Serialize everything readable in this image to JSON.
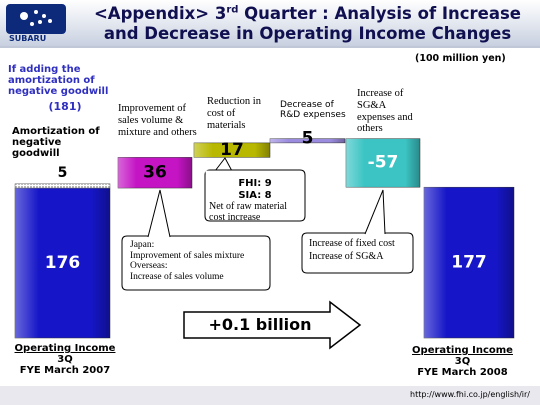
{
  "logo": "SUBARU",
  "header": {
    "title_start": "<Appendix> 3",
    "title_sup": "rd",
    "title_end": " Quarter : Analysis of Increase and Decrease in Operating Income Changes"
  },
  "unit": "(100 million yen)",
  "chart_data": {
    "type": "waterfall",
    "categories": [
      "Operating Income\n3Q\nFYE March 2007",
      "Improvement of sales volume & mixture and others",
      "Reduction in cost of materials",
      "Decrease of R&D expenses",
      "Increase of SG&A expenses and others",
      "Operating Income\n3Q\nFYE March 2008"
    ],
    "values": [
      176,
      36,
      17,
      5,
      -57,
      177
    ],
    "colors": [
      "#1616c8",
      "#c414c4",
      "#b8b800",
      "#9c8ce0",
      "#3cc4c4",
      "#1616c8"
    ],
    "value_label_colors": [
      "#ffffff",
      "#000000",
      "#000000",
      "#000000",
      "#ffffff",
      "#ffffff"
    ],
    "adjustment": {
      "note": "If adding the amortization of negative goodwill",
      "total": "(181)",
      "name": "Amortization of negative goodwill",
      "value": 5
    },
    "annotations": [
      "FHI: 9",
      "SIA: 8",
      "Net of raw material cost increase",
      "Japan:\nImprovement of sales mixture\nOverseas:\nIncrease of sales volume",
      "Increase of fixed cost\nIncrease of SG&A"
    ]
  },
  "arrow_label": "+0.1 billion",
  "footer": "http://www.fhi.co.jp/english/ir/"
}
